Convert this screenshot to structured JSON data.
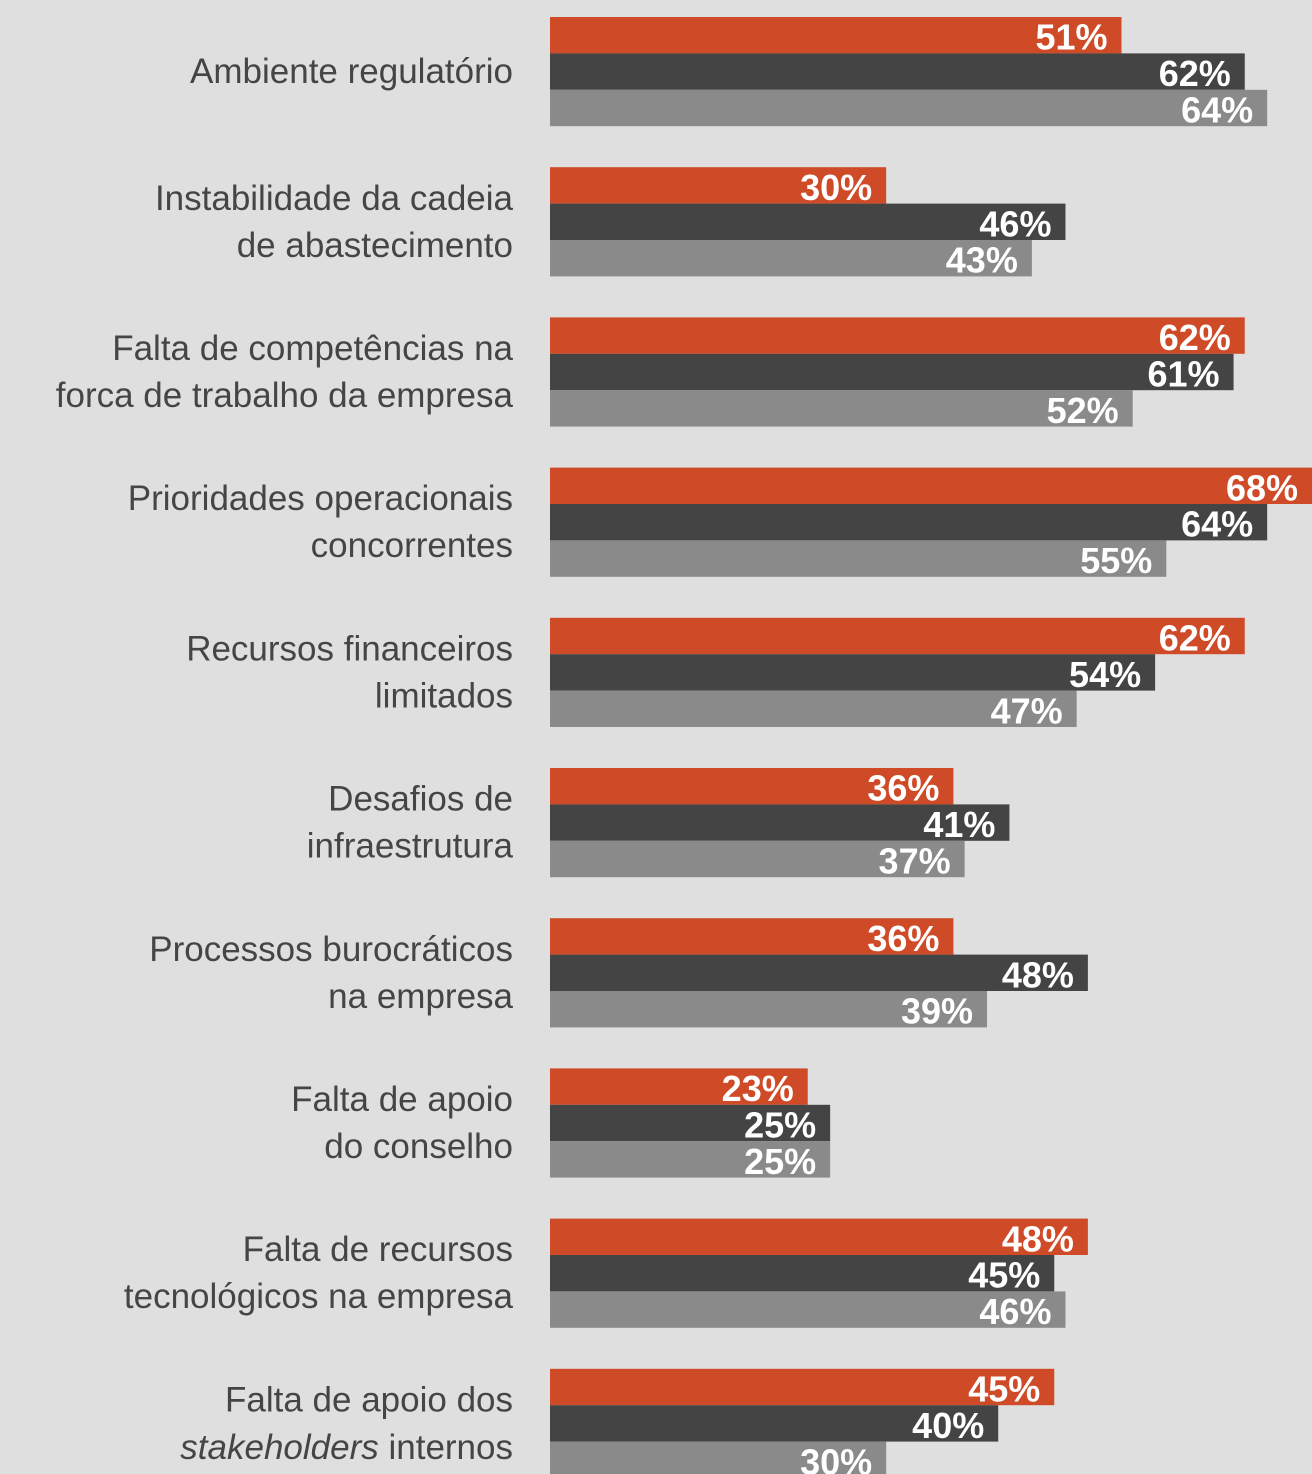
{
  "chart_data": {
    "type": "hbar-grouped",
    "categories": [
      [
        "Ambiente regulatório"
      ],
      [
        "Instabilidade da cadeia",
        "de abastecimento"
      ],
      [
        "Falta de competências na",
        "forca de trabalho da empresa"
      ],
      [
        "Prioridades operacionais",
        "concorrentes"
      ],
      [
        "Recursos financeiros",
        "limitados"
      ],
      [
        "Desafios de",
        "infraestrutura"
      ],
      [
        "Processos burocráticos",
        "na empresa"
      ],
      [
        "Falta de apoio",
        "do conselho"
      ],
      [
        "Falta de recursos",
        "tecnológicos na empresa"
      ],
      [
        "Falta de apoio dos",
        [
          {
            "text": "stakeholders",
            "italic": true
          },
          {
            "text": " internos"
          }
        ]
      ]
    ],
    "series": [
      {
        "color": "#cf4b27",
        "values": [
          51,
          30,
          62,
          68,
          62,
          36,
          36,
          23,
          48,
          45
        ],
        "value_labels": [
          "51%",
          "30%",
          "62%",
          "68%",
          "62%",
          "36%",
          "36%",
          "23%",
          "48%",
          "45%"
        ]
      },
      {
        "color": "#444444",
        "values": [
          62,
          46,
          61,
          64,
          54,
          41,
          48,
          25,
          45,
          40
        ],
        "value_labels": [
          "62%",
          "46%",
          "61%",
          "64%",
          "54%",
          "41%",
          "48%",
          "25%",
          "45%",
          "40%"
        ]
      },
      {
        "color": "#8a8a8b",
        "values": [
          64,
          43,
          52,
          55,
          47,
          37,
          39,
          25,
          46,
          30
        ],
        "value_labels": [
          "64%",
          "43%",
          "52%",
          "55%",
          "47%",
          "37%",
          "39%",
          "25%",
          "46%",
          "30%"
        ]
      }
    ],
    "xlim": [
      0,
      68
    ]
  }
}
